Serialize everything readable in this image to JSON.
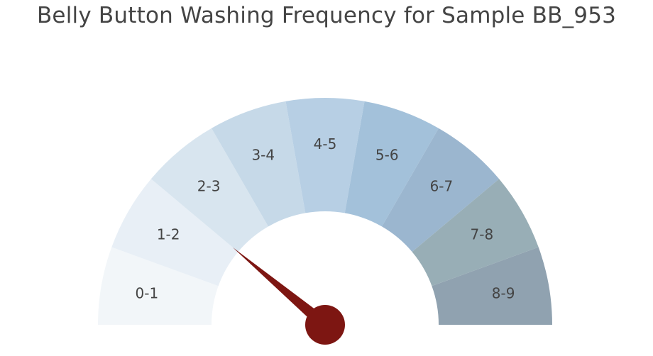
{
  "chart_data": {
    "type": "gauge",
    "title": "Belly Button Washing Frequency for Sample BB_953",
    "range": [
      0,
      9
    ],
    "categories": [
      "0-1",
      "1-2",
      "2-3",
      "3-4",
      "4-5",
      "5-6",
      "6-7",
      "7-8",
      "8-9"
    ],
    "colors": [
      "#f2f6f9",
      "#e8eff6",
      "#d8e5ef",
      "#c6d9e8",
      "#b7cfe4",
      "#a3c1da",
      "#9bb6cf",
      "#98aeb6",
      "#90a2b0"
    ],
    "value": 2,
    "needle_color": "#7d1612",
    "hub_color": "#7d1612",
    "grid": false,
    "legend": "none"
  }
}
